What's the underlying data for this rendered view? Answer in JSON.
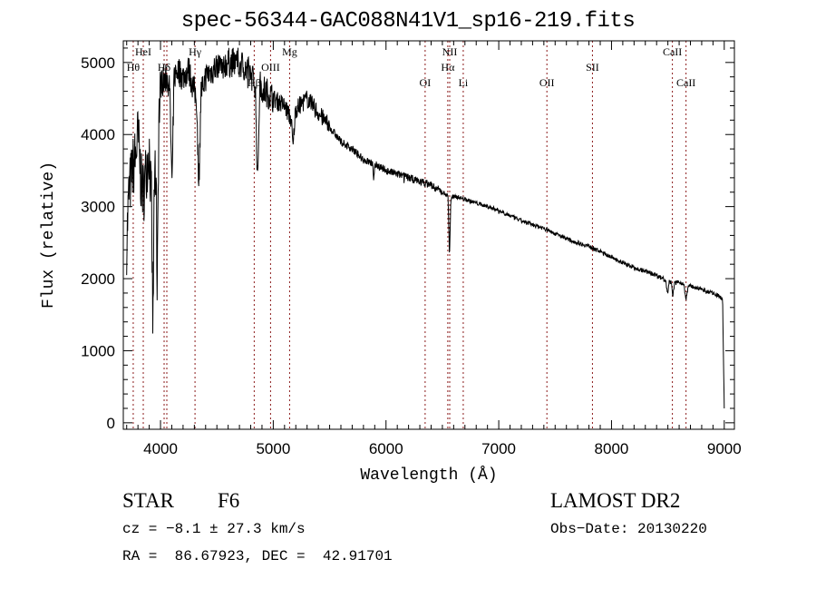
{
  "chart_data": {
    "type": "line",
    "title": "spec-56344-GAC088N41V1_sp16-219.fits",
    "xlabel": "Wavelength (Å)",
    "ylabel": "Flux (relative)",
    "xlim": [
      3670,
      9090
    ],
    "ylim": [
      -90,
      5300
    ],
    "xticks": [
      4000,
      5000,
      6000,
      7000,
      8000,
      9000
    ],
    "yticks": [
      0,
      1000,
      2000,
      3000,
      4000,
      5000
    ],
    "grid": false,
    "series": [
      {
        "name": "spectrum",
        "x": [
          3700,
          3720,
          3750,
          3780,
          3800,
          3830,
          3850,
          3880,
          3900,
          3920,
          3933,
          3945,
          3960,
          3970,
          3985,
          4000,
          4050,
          4080,
          4102,
          4120,
          4150,
          4200,
          4250,
          4300,
          4320,
          4340,
          4360,
          4400,
          4500,
          4600,
          4700,
          4800,
          4840,
          4861,
          4880,
          4900,
          5000,
          5100,
          5160,
          5175,
          5190,
          5200,
          5300,
          5400,
          5500,
          5600,
          5700,
          5800,
          5880,
          5890,
          5900,
          6000,
          6100,
          6200,
          6300,
          6400,
          6500,
          6550,
          6563,
          6575,
          6600,
          6700,
          6800,
          7000,
          7200,
          7400,
          7600,
          7800,
          8000,
          8200,
          8400,
          8480,
          8498,
          8510,
          8530,
          8542,
          8560,
          8600,
          8640,
          8662,
          8680,
          8700,
          8800,
          8900,
          8950,
          8985,
          9000
        ],
        "y": [
          2500,
          3200,
          3500,
          3700,
          4000,
          3300,
          3200,
          3600,
          3800,
          3000,
          1200,
          3400,
          3500,
          2000,
          4200,
          4700,
          4800,
          4700,
          3300,
          4800,
          4900,
          4800,
          4900,
          4600,
          4500,
          3300,
          4600,
          4800,
          4950,
          5000,
          5000,
          4850,
          4700,
          3300,
          4700,
          4650,
          4500,
          4400,
          4200,
          3800,
          4200,
          4350,
          4500,
          4300,
          4100,
          3900,
          3800,
          3650,
          3600,
          3350,
          3600,
          3500,
          3450,
          3400,
          3350,
          3300,
          3200,
          3150,
          2300,
          3100,
          3150,
          3100,
          3050,
          2950,
          2800,
          2700,
          2550,
          2450,
          2300,
          2150,
          2050,
          1980,
          1800,
          1960,
          1950,
          1750,
          1940,
          1950,
          1930,
          1700,
          1900,
          1900,
          1850,
          1800,
          1760,
          1720,
          200
        ]
      }
    ],
    "lines": [
      {
        "label": "Hθ",
        "wavelength": 3758,
        "row": 2
      },
      {
        "label": "HeI",
        "wavelength": 3847,
        "row": 1
      },
      {
        "label": "Hδ",
        "wavelength": 4032,
        "row": 2
      },
      {
        "label": "",
        "wavelength": 4056,
        "row": 0
      },
      {
        "label": "Hγ",
        "wavelength": 4306,
        "row": 1
      },
      {
        "label": "Hβ",
        "wavelength": 4831,
        "row": 3
      },
      {
        "label": "OIII",
        "wavelength": 4976,
        "row": 2
      },
      {
        "label": "Mg",
        "wavelength": 5145,
        "row": 1
      },
      {
        "label": "OI",
        "wavelength": 6347,
        "row": 3
      },
      {
        "label": "Hα",
        "wavelength": 6548,
        "row": 2
      },
      {
        "label": "NII",
        "wavelength": 6565,
        "row": 1
      },
      {
        "label": "Li",
        "wavelength": 6685,
        "row": 3
      },
      {
        "label": "OII",
        "wavelength": 7427,
        "row": 3
      },
      {
        "label": "SII",
        "wavelength": 7831,
        "row": 2
      },
      {
        "label": "CaII",
        "wavelength": 8540,
        "row": 1
      },
      {
        "label": "CaII",
        "wavelength": 8661,
        "row": 3
      }
    ],
    "line_color": "#8b1a1a"
  },
  "info": {
    "object": "STAR",
    "subclass": "F6",
    "survey": "LAMOST DR2",
    "cz": "cz = −8.1 ± 27.3 km/s",
    "obs_date": "Obs−Date: 20130220",
    "coords": "RA =  86.67923, DEC =  42.91701"
  }
}
